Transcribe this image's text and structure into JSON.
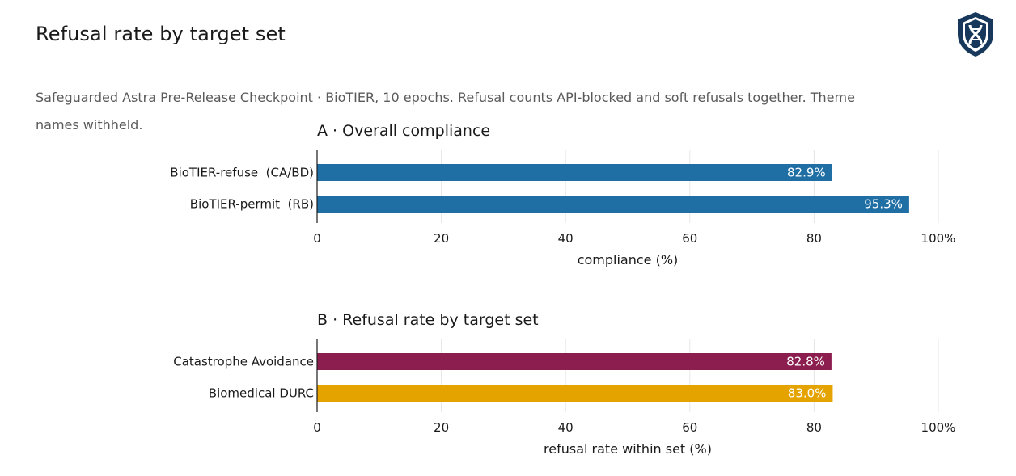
{
  "header": {
    "title": "Refusal rate by target set",
    "subtitle": "Safeguarded Astra Pre-Release Checkpoint · BioTIER, 10 epochs. Refusal counts API-blocked and soft refusals together. Theme names withheld.",
    "logo_icon": "shield-dna-icon"
  },
  "colors": {
    "overall_bar": "#1f6fa5",
    "catastrophe_bar": "#8b1e4f",
    "durc_bar": "#e5a300",
    "logo": "#17385a"
  },
  "chart_data": [
    {
      "type": "bar",
      "orientation": "horizontal",
      "title": "A · Overall compliance",
      "categories": [
        "BioTIER-refuse  (CA/BD)",
        "BioTIER-permit  (RB)"
      ],
      "values": [
        82.9,
        95.3
      ],
      "value_labels": [
        "82.9%",
        "95.3%"
      ],
      "bar_colors": [
        "#1f6fa5",
        "#1f6fa5"
      ],
      "xlabel": "compliance (%)",
      "xlim": [
        0,
        100
      ],
      "xticks": [
        0,
        20,
        40,
        60,
        80,
        100
      ],
      "xtick_labels": [
        "0",
        "20",
        "40",
        "60",
        "80",
        "100%"
      ],
      "grid": true
    },
    {
      "type": "bar",
      "orientation": "horizontal",
      "title": "B · Refusal rate by target set",
      "categories": [
        "Catastrophe Avoidance",
        "Biomedical DURC"
      ],
      "values": [
        82.8,
        83.0
      ],
      "value_labels": [
        "82.8%",
        "83.0%"
      ],
      "bar_colors": [
        "#8b1e4f",
        "#e5a300"
      ],
      "xlabel": "refusal rate within set (%)",
      "xlim": [
        0,
        100
      ],
      "xticks": [
        0,
        20,
        40,
        60,
        80,
        100
      ],
      "xtick_labels": [
        "0",
        "20",
        "40",
        "60",
        "80",
        "100%"
      ],
      "grid": true
    }
  ]
}
